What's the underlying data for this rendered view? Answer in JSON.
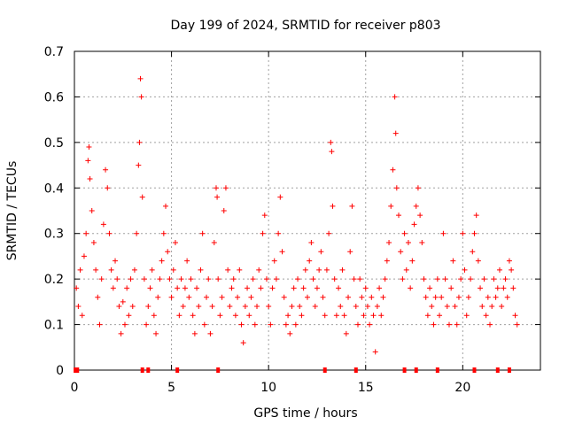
{
  "chart_data": {
    "type": "scatter",
    "title": "Day 199 of 2024, SRMTID for receiver p803",
    "xlabel": "GPS time / hours",
    "ylabel": "SRMTID / TECUs",
    "xlim": [
      0,
      24
    ],
    "ylim": [
      0,
      0.7
    ],
    "xticks": [
      0,
      5,
      10,
      15,
      20
    ],
    "xtick_labels": [
      "0",
      "5",
      "10",
      "15",
      "20"
    ],
    "yticks": [
      0,
      0.1,
      0.2,
      0.3,
      0.4,
      0.5,
      0.6,
      0.7
    ],
    "ytick_labels": [
      "0",
      "0.1",
      "0.2",
      "0.3",
      "0.4",
      "0.5",
      "0.6",
      "0.7"
    ],
    "grid": true,
    "marker": "+",
    "color": "#ff0000",
    "series": [
      {
        "name": "SRMTID",
        "points": [
          [
            0.1,
            0.18
          ],
          [
            0.2,
            0.14
          ],
          [
            0.3,
            0.22
          ],
          [
            0.4,
            0.12
          ],
          [
            0.5,
            0.25
          ],
          [
            0.6,
            0.3
          ],
          [
            0.7,
            0.46
          ],
          [
            0.75,
            0.49
          ],
          [
            0.8,
            0.42
          ],
          [
            0.9,
            0.35
          ],
          [
            1.0,
            0.28
          ],
          [
            1.1,
            0.22
          ],
          [
            1.2,
            0.16
          ],
          [
            1.3,
            0.1
          ],
          [
            1.4,
            0.2
          ],
          [
            1.5,
            0.32
          ],
          [
            1.6,
            0.44
          ],
          [
            1.7,
            0.4
          ],
          [
            1.8,
            0.3
          ],
          [
            1.9,
            0.22
          ],
          [
            2.0,
            0.18
          ],
          [
            2.1,
            0.24
          ],
          [
            2.2,
            0.2
          ],
          [
            2.3,
            0.14
          ],
          [
            2.4,
            0.08
          ],
          [
            2.5,
            0.15
          ],
          [
            2.6,
            0.1
          ],
          [
            2.7,
            0.18
          ],
          [
            2.8,
            0.12
          ],
          [
            2.9,
            0.2
          ],
          [
            3.0,
            0.14
          ],
          [
            3.1,
            0.22
          ],
          [
            3.2,
            0.3
          ],
          [
            3.3,
            0.45
          ],
          [
            3.35,
            0.5
          ],
          [
            3.4,
            0.64
          ],
          [
            3.45,
            0.6
          ],
          [
            3.5,
            0.38
          ],
          [
            3.6,
            0.2
          ],
          [
            3.7,
            0.1
          ],
          [
            3.8,
            0.14
          ],
          [
            3.9,
            0.18
          ],
          [
            4.0,
            0.22
          ],
          [
            4.1,
            0.12
          ],
          [
            4.2,
            0.08
          ],
          [
            4.3,
            0.16
          ],
          [
            4.4,
            0.2
          ],
          [
            4.5,
            0.24
          ],
          [
            4.6,
            0.3
          ],
          [
            4.7,
            0.36
          ],
          [
            4.8,
            0.26
          ],
          [
            4.9,
            0.2
          ],
          [
            5.0,
            0.16
          ],
          [
            5.1,
            0.22
          ],
          [
            5.2,
            0.28
          ],
          [
            5.3,
            0.18
          ],
          [
            5.4,
            0.12
          ],
          [
            5.5,
            0.2
          ],
          [
            5.6,
            0.14
          ],
          [
            5.7,
            0.18
          ],
          [
            5.8,
            0.24
          ],
          [
            5.9,
            0.16
          ],
          [
            6.0,
            0.2
          ],
          [
            6.1,
            0.12
          ],
          [
            6.2,
            0.08
          ],
          [
            6.3,
            0.18
          ],
          [
            6.4,
            0.14
          ],
          [
            6.5,
            0.22
          ],
          [
            6.6,
            0.3
          ],
          [
            6.7,
            0.1
          ],
          [
            6.8,
            0.16
          ],
          [
            6.9,
            0.2
          ],
          [
            7.0,
            0.08
          ],
          [
            7.1,
            0.14
          ],
          [
            7.2,
            0.28
          ],
          [
            7.3,
            0.4
          ],
          [
            7.35,
            0.38
          ],
          [
            7.4,
            0.2
          ],
          [
            7.5,
            0.12
          ],
          [
            7.6,
            0.16
          ],
          [
            7.7,
            0.35
          ],
          [
            7.8,
            0.4
          ],
          [
            7.9,
            0.22
          ],
          [
            8.0,
            0.14
          ],
          [
            8.1,
            0.18
          ],
          [
            8.2,
            0.2
          ],
          [
            8.3,
            0.12
          ],
          [
            8.4,
            0.16
          ],
          [
            8.5,
            0.22
          ],
          [
            8.6,
            0.1
          ],
          [
            8.7,
            0.06
          ],
          [
            8.8,
            0.14
          ],
          [
            8.9,
            0.18
          ],
          [
            9.0,
            0.12
          ],
          [
            9.1,
            0.16
          ],
          [
            9.2,
            0.2
          ],
          [
            9.3,
            0.1
          ],
          [
            9.4,
            0.14
          ],
          [
            9.5,
            0.22
          ],
          [
            9.6,
            0.18
          ],
          [
            9.7,
            0.3
          ],
          [
            9.8,
            0.34
          ],
          [
            9.9,
            0.2
          ],
          [
            10.0,
            0.14
          ],
          [
            10.1,
            0.1
          ],
          [
            10.2,
            0.18
          ],
          [
            10.3,
            0.24
          ],
          [
            10.4,
            0.2
          ],
          [
            10.5,
            0.3
          ],
          [
            10.6,
            0.38
          ],
          [
            10.7,
            0.26
          ],
          [
            10.8,
            0.16
          ],
          [
            10.9,
            0.1
          ],
          [
            11.0,
            0.12
          ],
          [
            11.1,
            0.08
          ],
          [
            11.2,
            0.14
          ],
          [
            11.3,
            0.18
          ],
          [
            11.4,
            0.1
          ],
          [
            11.5,
            0.2
          ],
          [
            11.6,
            0.14
          ],
          [
            11.7,
            0.12
          ],
          [
            11.8,
            0.18
          ],
          [
            11.9,
            0.22
          ],
          [
            12.0,
            0.16
          ],
          [
            12.1,
            0.24
          ],
          [
            12.2,
            0.28
          ],
          [
            12.3,
            0.2
          ],
          [
            12.4,
            0.14
          ],
          [
            12.5,
            0.18
          ],
          [
            12.6,
            0.22
          ],
          [
            12.7,
            0.26
          ],
          [
            12.8,
            0.16
          ],
          [
            12.9,
            0.12
          ],
          [
            13.0,
            0.22
          ],
          [
            13.1,
            0.3
          ],
          [
            13.2,
            0.5
          ],
          [
            13.25,
            0.48
          ],
          [
            13.3,
            0.36
          ],
          [
            13.4,
            0.2
          ],
          [
            13.5,
            0.12
          ],
          [
            13.6,
            0.18
          ],
          [
            13.7,
            0.14
          ],
          [
            13.8,
            0.22
          ],
          [
            13.9,
            0.12
          ],
          [
            14.0,
            0.08
          ],
          [
            14.1,
            0.16
          ],
          [
            14.2,
            0.26
          ],
          [
            14.3,
            0.36
          ],
          [
            14.4,
            0.2
          ],
          [
            14.5,
            0.14
          ],
          [
            14.6,
            0.1
          ],
          [
            14.7,
            0.2
          ],
          [
            14.8,
            0.16
          ],
          [
            14.9,
            0.12
          ],
          [
            15.0,
            0.18
          ],
          [
            15.1,
            0.14
          ],
          [
            15.2,
            0.1
          ],
          [
            15.3,
            0.16
          ],
          [
            15.4,
            0.12
          ],
          [
            15.5,
            0.04
          ],
          [
            15.6,
            0.14
          ],
          [
            15.7,
            0.18
          ],
          [
            15.8,
            0.12
          ],
          [
            15.9,
            0.16
          ],
          [
            16.0,
            0.2
          ],
          [
            16.1,
            0.24
          ],
          [
            16.2,
            0.28
          ],
          [
            16.3,
            0.36
          ],
          [
            16.4,
            0.44
          ],
          [
            16.5,
            0.6
          ],
          [
            16.55,
            0.52
          ],
          [
            16.6,
            0.4
          ],
          [
            16.7,
            0.34
          ],
          [
            16.8,
            0.26
          ],
          [
            16.9,
            0.2
          ],
          [
            17.0,
            0.3
          ],
          [
            17.1,
            0.22
          ],
          [
            17.2,
            0.28
          ],
          [
            17.3,
            0.18
          ],
          [
            17.4,
            0.24
          ],
          [
            17.5,
            0.32
          ],
          [
            17.6,
            0.36
          ],
          [
            17.7,
            0.4
          ],
          [
            17.8,
            0.34
          ],
          [
            17.9,
            0.28
          ],
          [
            18.0,
            0.2
          ],
          [
            18.1,
            0.16
          ],
          [
            18.2,
            0.12
          ],
          [
            18.3,
            0.18
          ],
          [
            18.4,
            0.14
          ],
          [
            18.5,
            0.1
          ],
          [
            18.6,
            0.16
          ],
          [
            18.7,
            0.2
          ],
          [
            18.8,
            0.12
          ],
          [
            18.9,
            0.16
          ],
          [
            19.0,
            0.3
          ],
          [
            19.1,
            0.2
          ],
          [
            19.2,
            0.14
          ],
          [
            19.3,
            0.1
          ],
          [
            19.4,
            0.18
          ],
          [
            19.5,
            0.24
          ],
          [
            19.6,
            0.14
          ],
          [
            19.7,
            0.1
          ],
          [
            19.8,
            0.16
          ],
          [
            19.9,
            0.2
          ],
          [
            20.0,
            0.3
          ],
          [
            20.1,
            0.22
          ],
          [
            20.2,
            0.12
          ],
          [
            20.3,
            0.16
          ],
          [
            20.4,
            0.2
          ],
          [
            20.5,
            0.26
          ],
          [
            20.6,
            0.3
          ],
          [
            20.7,
            0.34
          ],
          [
            20.8,
            0.24
          ],
          [
            20.9,
            0.18
          ],
          [
            21.0,
            0.14
          ],
          [
            21.1,
            0.2
          ],
          [
            21.2,
            0.12
          ],
          [
            21.3,
            0.16
          ],
          [
            21.4,
            0.1
          ],
          [
            21.5,
            0.14
          ],
          [
            21.6,
            0.2
          ],
          [
            21.7,
            0.16
          ],
          [
            21.8,
            0.18
          ],
          [
            21.9,
            0.22
          ],
          [
            22.0,
            0.14
          ],
          [
            22.1,
            0.18
          ],
          [
            22.2,
            0.2
          ],
          [
            22.3,
            0.16
          ],
          [
            22.4,
            0.24
          ],
          [
            22.5,
            0.22
          ],
          [
            22.6,
            0.18
          ],
          [
            22.7,
            0.12
          ],
          [
            22.8,
            0.1
          ]
        ]
      }
    ],
    "zero_marks": [
      0.05,
      0.15,
      3.5,
      3.8,
      5.3,
      7.4,
      12.9,
      14.5,
      17.0,
      17.6,
      18.7,
      20.6,
      21.8,
      22.4
    ]
  }
}
